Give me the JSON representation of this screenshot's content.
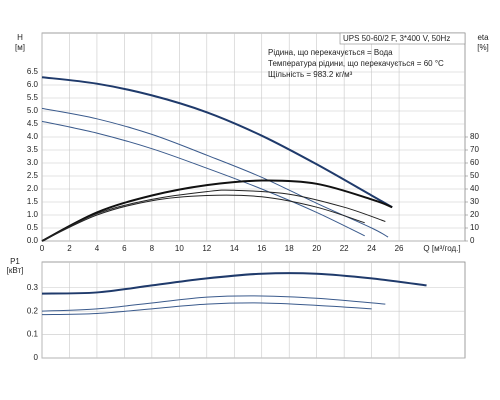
{
  "chart_data": [
    {
      "type": "line",
      "model": "UPS 50-60/2 F, 3*400 V, 50Hz",
      "notes": [
        "Рідина, що перекачується = Вода",
        "Температура рідини, що перекачується = 60 °C",
        "Щільність = 983.2 кг/м³"
      ],
      "ylabel": "H",
      "yunit": "[м]",
      "y2label": "eta",
      "y2unit": "[%]",
      "xlabel": "Q [м³/год.]",
      "xlim": [
        0,
        30.8
      ],
      "xticks": [
        0,
        2,
        4,
        6,
        8,
        10,
        12,
        14,
        16,
        18,
        20,
        22,
        24,
        26
      ],
      "ylim": [
        0,
        8
      ],
      "yticks": [
        {
          "value": 0,
          "label": "0.0"
        },
        0.5,
        {
          "value": 1,
          "label": "1.0"
        },
        1.5,
        {
          "value": 2,
          "label": "2.0"
        },
        2.5,
        {
          "value": 3,
          "label": "3.0"
        },
        3.5,
        {
          "value": 4,
          "label": "4.0"
        },
        4.5,
        {
          "value": 5,
          "label": "5.0"
        },
        5.5,
        {
          "value": 6,
          "label": "6.0"
        },
        6.5
      ],
      "y2lim": [
        0,
        160
      ],
      "y2ticks": [
        0,
        10,
        20,
        30,
        40,
        50,
        60,
        70,
        80
      ],
      "grid": true,
      "show_xtick_labels": true,
      "series": [
        {
          "color": "#1f3a6b",
          "width": 2,
          "x": [
            0,
            4,
            8,
            12,
            16,
            20,
            24,
            25.5
          ],
          "values": [
            6.3,
            6.05,
            5.6,
            4.95,
            4.05,
            2.95,
            1.75,
            1.3
          ]
        },
        {
          "color": "#3a5a8c",
          "width": 1,
          "x": [
            0,
            4,
            8,
            12,
            16,
            20,
            24,
            25.2
          ],
          "values": [
            5.1,
            4.7,
            4.1,
            3.3,
            2.45,
            1.45,
            0.5,
            0.15
          ]
        },
        {
          "color": "#3a5a8c",
          "width": 1,
          "x": [
            0,
            4,
            8,
            12,
            16,
            20,
            23.5
          ],
          "values": [
            4.6,
            4.15,
            3.55,
            2.8,
            2.0,
            1.1,
            0.2
          ]
        },
        {
          "color": "#111111",
          "width": 2,
          "axis": "y2",
          "x": [
            0,
            4,
            8,
            12,
            16,
            20,
            24,
            25.5
          ],
          "values": [
            0,
            22,
            35,
            43,
            46.5,
            44,
            32,
            26
          ]
        },
        {
          "color": "#222222",
          "width": 1,
          "axis": "y2",
          "x": [
            0,
            4,
            8,
            12,
            14,
            18,
            22,
            25
          ],
          "values": [
            0,
            21,
            32,
            38,
            39,
            36,
            26,
            15
          ]
        },
        {
          "color": "#222222",
          "width": 1,
          "axis": "y2",
          "x": [
            0,
            4,
            8,
            12,
            16,
            20,
            23.5
          ],
          "values": [
            0,
            20,
            31,
            35,
            34,
            26,
            14
          ]
        }
      ]
    },
    {
      "type": "line",
      "ylabel": "P1",
      "yunit": "[кВт]",
      "xlim": [
        0,
        30.8
      ],
      "xticks": [
        0,
        2,
        4,
        6,
        8,
        10,
        12,
        14,
        16,
        18,
        20,
        22,
        24,
        26
      ],
      "ylim": [
        0,
        0.41
      ],
      "yticks": [
        0,
        0.1,
        0.2,
        0.3
      ],
      "grid": true,
      "show_xtick_labels": false,
      "series": [
        {
          "color": "#1f3a6b",
          "width": 2,
          "x": [
            0,
            4,
            8,
            12,
            16,
            20,
            24,
            28
          ],
          "values": [
            0.275,
            0.28,
            0.31,
            0.34,
            0.36,
            0.36,
            0.34,
            0.31
          ]
        },
        {
          "color": "#3a5a8c",
          "width": 1,
          "x": [
            0,
            4,
            8,
            12,
            16,
            20,
            25
          ],
          "values": [
            0.2,
            0.21,
            0.235,
            0.26,
            0.265,
            0.255,
            0.23
          ]
        },
        {
          "color": "#3a5a8c",
          "width": 1,
          "x": [
            0,
            4,
            8,
            12,
            16,
            20,
            24
          ],
          "values": [
            0.185,
            0.19,
            0.21,
            0.23,
            0.235,
            0.225,
            0.21
          ]
        }
      ]
    }
  ]
}
